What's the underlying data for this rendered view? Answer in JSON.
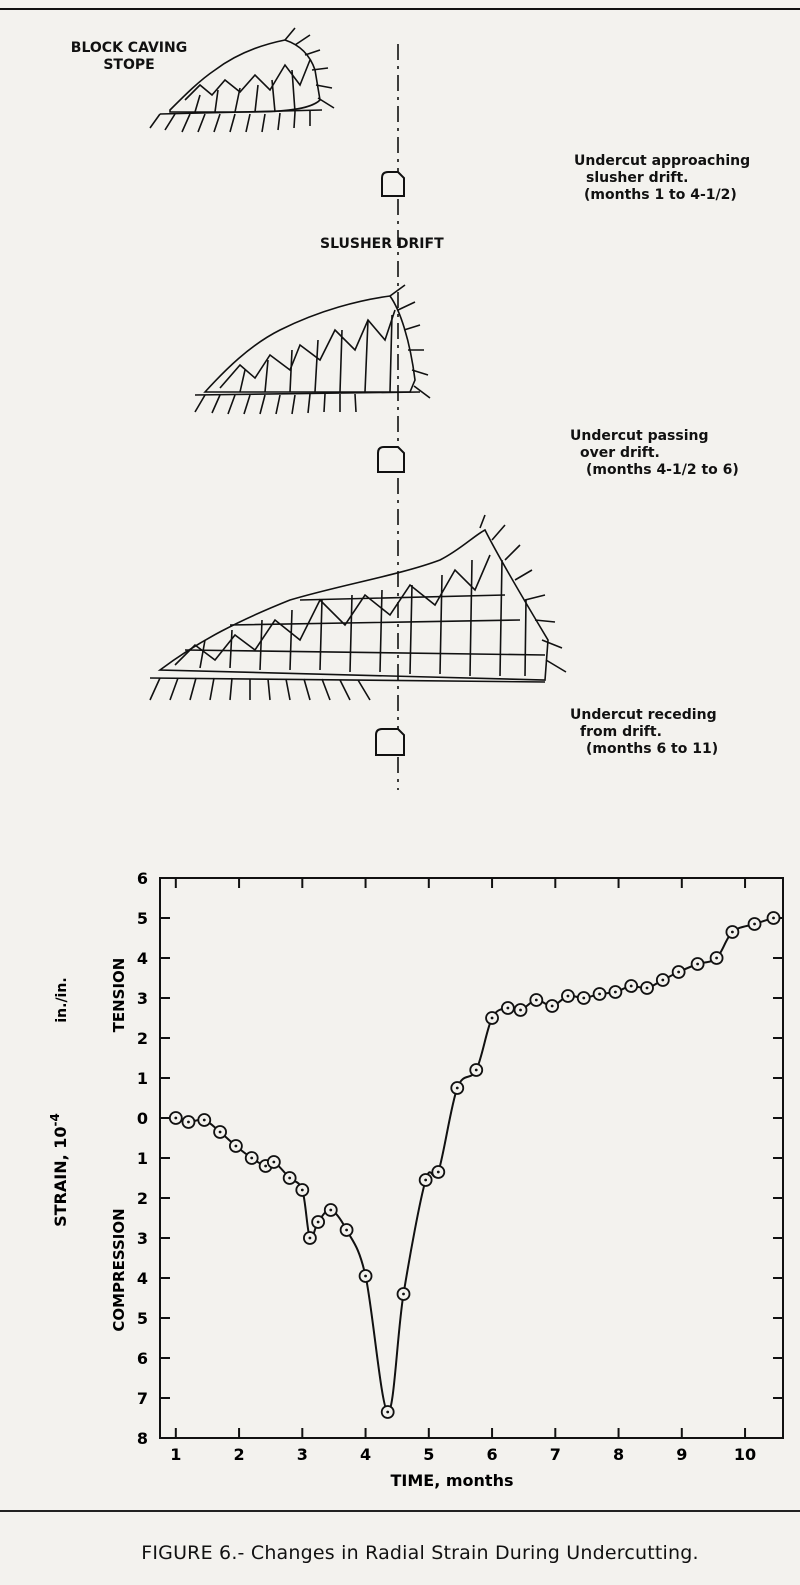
{
  "figure": {
    "caption": "FIGURE 6.- Changes in Radial Strain During Undercutting."
  },
  "diagram": {
    "stope_label_line1": "BLOCK CAVING",
    "stope_label_line2": "STOPE",
    "drift_label": "SLUSHER DRIFT",
    "stages": [
      {
        "line1": "Undercut approaching",
        "line2": "slusher drift.",
        "line3": "(months 1 to 4-1/2)"
      },
      {
        "line1": "Undercut passing",
        "line2": "over drift.",
        "line3": "(months 4-1/2 to 6)"
      },
      {
        "line1": "Undercut receding",
        "line2": "from drift.",
        "line3": "(months 6 to 11)"
      }
    ]
  },
  "chart_data": {
    "type": "line",
    "xlabel": "TIME, months",
    "ylabel_strain": "STRAIN, 10",
    "ylabel_exp": "-4",
    "ylabel_units": "in./in.",
    "ylabel_tension": "TENSION",
    "ylabel_compression": "COMPRESSION",
    "xlim": [
      0.75,
      10.6
    ],
    "ylim": [
      -8,
      6
    ],
    "x_ticks": [
      1,
      2,
      3,
      4,
      5,
      6,
      7,
      8,
      9,
      10
    ],
    "x_tick_labels": [
      "1",
      "2",
      "3",
      "4",
      "5",
      "6",
      "7",
      "8",
      "9",
      "10"
    ],
    "y_ticks": [
      6,
      5,
      4,
      3,
      2,
      1,
      0,
      -1,
      -2,
      -3,
      -4,
      -5,
      -6,
      -7,
      -8
    ],
    "y_tick_labels": [
      "6",
      "5",
      "4",
      "3",
      "2",
      "1",
      "0",
      "1",
      "2",
      "3",
      "4",
      "5",
      "6",
      "7",
      "8"
    ],
    "grid": false,
    "series": [
      {
        "marker": "circle-dot",
        "x": [
          1.0,
          1.2,
          1.45,
          1.7,
          1.95,
          2.2,
          2.42,
          2.55,
          2.8,
          3.0,
          3.12,
          3.25,
          3.45,
          3.7,
          4.0,
          4.35,
          4.6,
          4.95,
          5.15,
          5.45,
          5.75,
          6.0,
          6.25,
          6.45,
          6.7,
          6.95,
          7.2,
          7.45,
          7.7,
          7.95,
          8.2,
          8.45,
          8.7,
          8.95,
          9.25,
          9.55,
          9.8,
          10.15,
          10.45
        ],
        "y": [
          0.0,
          -0.1,
          -0.05,
          -0.35,
          -0.7,
          -1.0,
          -1.2,
          -1.1,
          -1.5,
          -1.8,
          -3.0,
          -2.6,
          -2.3,
          -2.8,
          -3.95,
          -7.35,
          -4.4,
          -1.55,
          -1.35,
          0.75,
          1.2,
          2.5,
          2.75,
          2.7,
          2.95,
          2.8,
          3.05,
          3.0,
          3.1,
          3.15,
          3.3,
          3.25,
          3.45,
          3.65,
          3.85,
          4.0,
          4.65,
          4.85,
          5.0
        ]
      }
    ]
  }
}
